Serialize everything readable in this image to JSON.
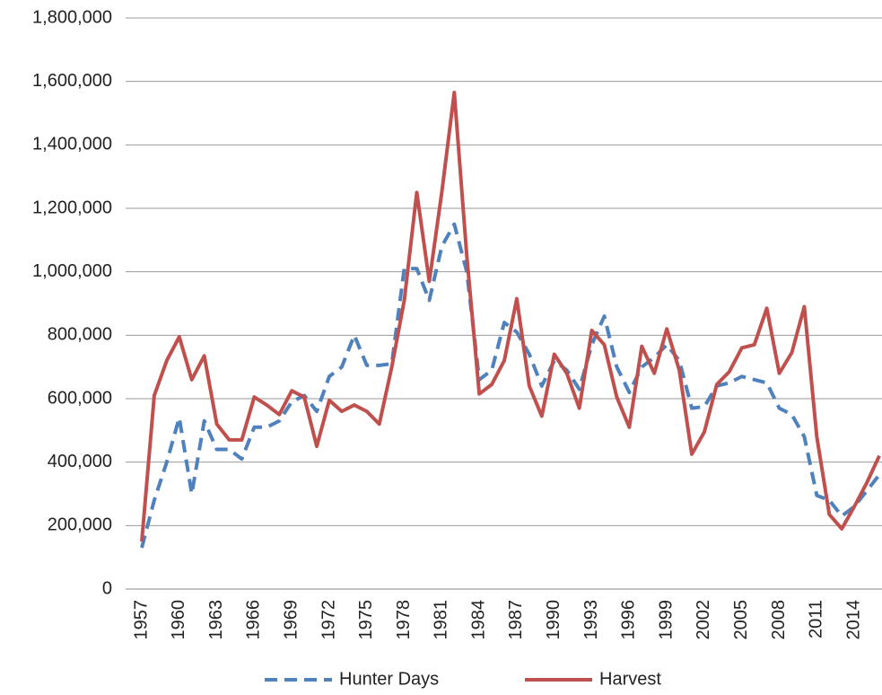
{
  "chart_data": {
    "type": "line",
    "categories": [
      "1957",
      null,
      null,
      "1960",
      null,
      null,
      "1963",
      null,
      null,
      "1966",
      null,
      null,
      "1969",
      null,
      null,
      "1972",
      null,
      null,
      "1975",
      null,
      null,
      "1978",
      null,
      null,
      "1981",
      null,
      null,
      "1984",
      null,
      null,
      "1987",
      null,
      null,
      "1990",
      null,
      null,
      "1993",
      null,
      null,
      "1996",
      null,
      null,
      "1999",
      null,
      null,
      "2002",
      null,
      null,
      "2005",
      null,
      null,
      "2008",
      null,
      null,
      "2011",
      null,
      null,
      "2014",
      null,
      null
    ],
    "series": [
      {
        "name": "Hunter Days",
        "color": "#4f81bd",
        "dashed": true,
        "values": [
          130000,
          280000,
          400000,
          540000,
          300000,
          530000,
          440000,
          440000,
          410000,
          510000,
          510000,
          530000,
          590000,
          610000,
          560000,
          670000,
          700000,
          800000,
          705000,
          705000,
          710000,
          1010000,
          1010000,
          910000,
          1080000,
          1150000,
          1000000,
          660000,
          690000,
          840000,
          810000,
          740000,
          640000,
          720000,
          690000,
          630000,
          770000,
          860000,
          700000,
          620000,
          700000,
          730000,
          770000,
          720000,
          570000,
          575000,
          640000,
          650000,
          670000,
          660000,
          650000,
          570000,
          550000,
          480000,
          295000,
          280000,
          230000,
          260000,
          310000,
          360000
        ]
      },
      {
        "name": "Harvest",
        "color": "#c0504d",
        "dashed": false,
        "values": [
          150000,
          610000,
          720000,
          795000,
          660000,
          735000,
          520000,
          470000,
          470000,
          605000,
          580000,
          550000,
          625000,
          605000,
          450000,
          595000,
          560000,
          580000,
          560000,
          520000,
          700000,
          910000,
          1250000,
          970000,
          1250000,
          1565000,
          1050000,
          615000,
          645000,
          720000,
          915000,
          640000,
          545000,
          740000,
          680000,
          570000,
          815000,
          770000,
          605000,
          510000,
          765000,
          680000,
          820000,
          690000,
          425000,
          495000,
          645000,
          685000,
          760000,
          770000,
          885000,
          680000,
          745000,
          890000,
          480000,
          235000,
          190000,
          260000,
          335000,
          420000
        ]
      }
    ],
    "ylim": [
      0,
      1800000
    ],
    "yticks": [
      0,
      {
        "value": 200000,
        "label": "200,000"
      },
      {
        "value": 400000,
        "label": "400,000"
      },
      {
        "value": 600000,
        "label": "600,000"
      },
      {
        "value": 800000,
        "label": "800,000"
      },
      {
        "value": 1000000,
        "label": "1,000,000"
      },
      {
        "value": 1200000,
        "label": "1,200,000"
      },
      {
        "value": 1400000,
        "label": "1,400,000"
      },
      {
        "value": 1600000,
        "label": "1,600,000"
      },
      {
        "value": 1800000,
        "label": "1,800,000"
      }
    ],
    "grid": true,
    "legend": "bottom"
  }
}
